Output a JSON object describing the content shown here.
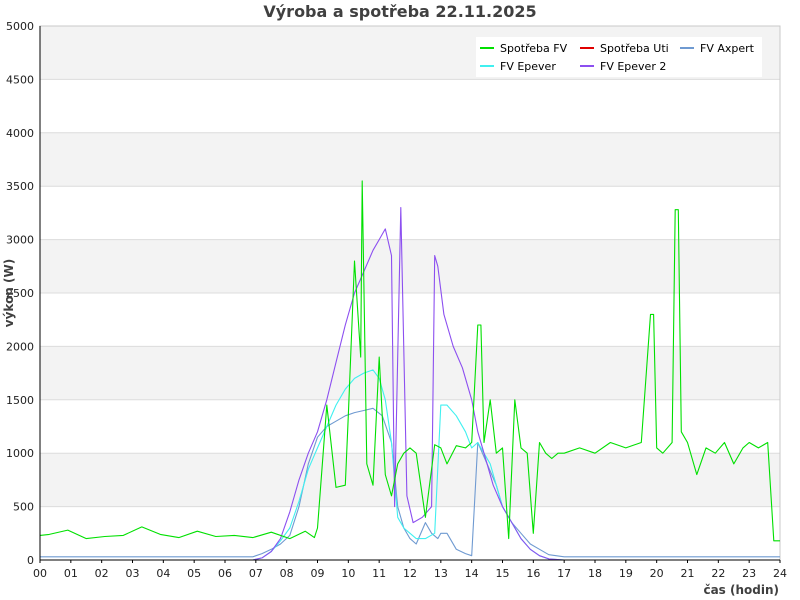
{
  "chart_data": {
    "type": "line",
    "title": "Výroba a spotřeba 22.11.2025",
    "xlabel": "čas (hodin)",
    "ylabel": "výkon (W)",
    "xlim": [
      0,
      24
    ],
    "ylim": [
      0,
      5000
    ],
    "x_ticks": [
      "00",
      "01",
      "02",
      "03",
      "04",
      "05",
      "06",
      "07",
      "08",
      "09",
      "10",
      "11",
      "12",
      "13",
      "14",
      "15",
      "16",
      "17",
      "18",
      "19",
      "20",
      "21",
      "22",
      "23",
      "24"
    ],
    "y_ticks": [
      "0",
      "500",
      "1000",
      "1500",
      "2000",
      "2500",
      "3000",
      "3500",
      "4000",
      "4500",
      "5000"
    ],
    "grid": "horizontal bands",
    "legend_position": "top-right",
    "series": [
      {
        "name": "Spotřeba FV",
        "color": "#00e000",
        "x": [
          0,
          0.3,
          0.9,
          1.5,
          2.1,
          2.7,
          3.3,
          3.9,
          4.5,
          5.1,
          5.7,
          6.3,
          6.9,
          7.5,
          8.1,
          8.6,
          8.9,
          9.0,
          9.3,
          9.6,
          9.9,
          10.0,
          10.2,
          10.4,
          10.45,
          10.6,
          10.8,
          11.0,
          11.2,
          11.4,
          11.6,
          11.8,
          12.0,
          12.2,
          12.5,
          12.8,
          13.0,
          13.2,
          13.5,
          13.8,
          14.0,
          14.2,
          14.3,
          14.4,
          14.6,
          14.8,
          15.0,
          15.2,
          15.4,
          15.6,
          15.8,
          16.0,
          16.2,
          16.4,
          16.6,
          16.8,
          17.0,
          17.5,
          18.0,
          18.5,
          19.0,
          19.5,
          19.8,
          19.9,
          20.0,
          20.2,
          20.5,
          20.6,
          20.7,
          20.8,
          21.0,
          21.3,
          21.6,
          21.9,
          22.2,
          22.5,
          22.8,
          23.0,
          23.3,
          23.6,
          23.8,
          24.0
        ],
        "y": [
          230,
          240,
          280,
          200,
          220,
          230,
          310,
          240,
          210,
          270,
          220,
          230,
          210,
          260,
          200,
          270,
          210,
          300,
          1450,
          680,
          700,
          1350,
          2800,
          1900,
          3550,
          900,
          700,
          1900,
          800,
          600,
          900,
          1000,
          1050,
          1000,
          400,
          1080,
          1050,
          900,
          1070,
          1050,
          1100,
          2200,
          2200,
          1100,
          1500,
          1000,
          1050,
          200,
          1500,
          1050,
          1000,
          250,
          1100,
          1000,
          950,
          1000,
          1000,
          1050,
          1000,
          1100,
          1050,
          1100,
          2300,
          2300,
          1050,
          1000,
          1100,
          3280,
          3280,
          1200,
          1100,
          800,
          1050,
          1000,
          1100,
          900,
          1050,
          1100,
          1050,
          1100,
          180,
          180
        ]
      },
      {
        "name": "Spotřeba Uti",
        "color": "#e00000",
        "x": [],
        "y": []
      },
      {
        "name": "FV Axpert",
        "color": "#6f9ad1",
        "x": [
          0,
          6.9,
          7.2,
          7.5,
          7.8,
          8.1,
          8.4,
          8.7,
          9.0,
          9.3,
          9.6,
          9.9,
          10.2,
          10.5,
          10.8,
          11.1,
          11.4,
          11.6,
          11.8,
          12.0,
          12.2,
          12.5,
          12.7,
          12.9,
          13.0,
          13.2,
          13.5,
          13.8,
          14.0,
          14.2,
          14.5,
          14.8,
          15.0,
          15.3,
          15.6,
          15.9,
          16.2,
          16.5,
          17.0,
          24.0
        ],
        "y": [
          30,
          30,
          60,
          100,
          150,
          230,
          500,
          900,
          1150,
          1250,
          1300,
          1350,
          1380,
          1400,
          1420,
          1350,
          1100,
          500,
          300,
          200,
          150,
          350,
          250,
          200,
          250,
          250,
          100,
          60,
          40,
          1100,
          900,
          700,
          500,
          350,
          250,
          150,
          100,
          50,
          30,
          30
        ]
      },
      {
        "name": "FV Epever",
        "color": "#40f0f0",
        "x": [
          0,
          6.9,
          7.2,
          7.5,
          7.8,
          8.1,
          8.4,
          8.7,
          9.0,
          9.3,
          9.6,
          9.9,
          10.2,
          10.5,
          10.8,
          11.0,
          11.2,
          11.4,
          11.6,
          11.8,
          12.0,
          12.2,
          12.5,
          12.8,
          13.0,
          13.2,
          13.5,
          13.8,
          14.0,
          14.2,
          14.4,
          14.6,
          14.8,
          15.0,
          15.3,
          15.6,
          15.9,
          16.2,
          16.5,
          17.0,
          24.0
        ],
        "y": [
          0,
          0,
          20,
          80,
          180,
          300,
          550,
          850,
          1050,
          1250,
          1450,
          1600,
          1700,
          1750,
          1780,
          1700,
          1500,
          1100,
          400,
          300,
          250,
          200,
          200,
          250,
          1450,
          1450,
          1350,
          1200,
          1050,
          1100,
          1000,
          900,
          700,
          500,
          350,
          200,
          100,
          40,
          10,
          0,
          0
        ]
      },
      {
        "name": "FV Epever 2",
        "color": "#8c4ff0",
        "x": [
          0,
          6.9,
          7.2,
          7.5,
          7.8,
          8.1,
          8.4,
          8.7,
          9.0,
          9.3,
          9.6,
          9.9,
          10.2,
          10.5,
          10.8,
          11.0,
          11.2,
          11.4,
          11.5,
          11.7,
          11.9,
          12.1,
          12.4,
          12.7,
          12.8,
          12.9,
          13.1,
          13.4,
          13.7,
          14.0,
          14.2,
          14.4,
          14.7,
          15.0,
          15.3,
          15.6,
          15.9,
          16.2,
          16.5,
          17.0,
          24.0
        ],
        "y": [
          0,
          0,
          20,
          80,
          200,
          450,
          750,
          1000,
          1200,
          1500,
          1850,
          2200,
          2500,
          2700,
          2900,
          3000,
          3100,
          2850,
          500,
          3300,
          600,
          350,
          400,
          500,
          2850,
          2750,
          2300,
          2000,
          1800,
          1500,
          1200,
          1000,
          700,
          500,
          350,
          200,
          100,
          40,
          10,
          0,
          0
        ]
      }
    ]
  }
}
